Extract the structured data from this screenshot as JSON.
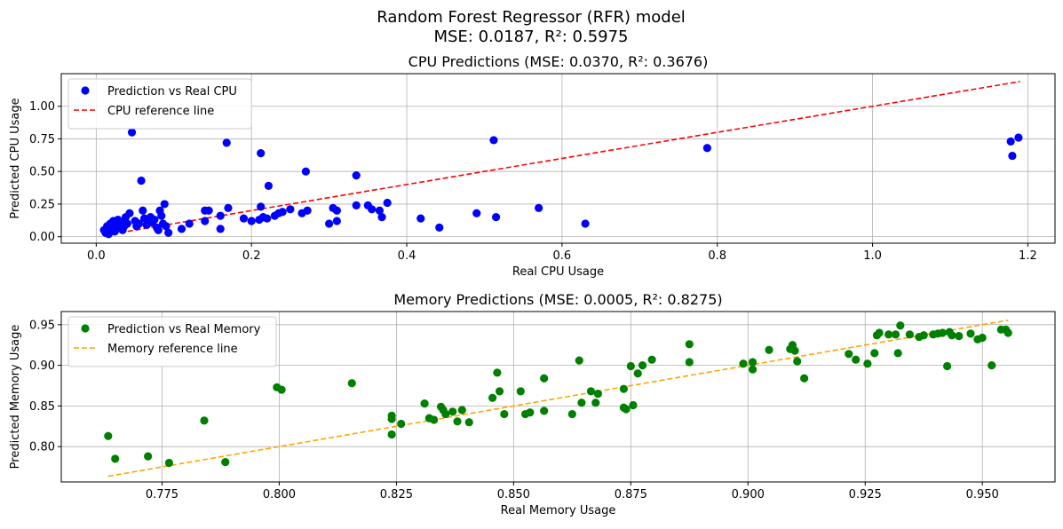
{
  "suptitle_line1": "Random Forest Regressor (RFR) model",
  "suptitle_line2": "MSE: 0.0187, R²: 0.5975",
  "chart_data": [
    {
      "type": "scatter",
      "title": "CPU Predictions (MSE: 0.0370, R²: 0.3676)",
      "xlabel": "Real CPU Usage",
      "ylabel": "Predicted CPU Usage",
      "xlim": [
        -0.045,
        1.235
      ],
      "ylim": [
        -0.05,
        1.25
      ],
      "xticks": [
        0.0,
        0.2,
        0.4,
        0.6,
        0.8,
        1.0,
        1.2
      ],
      "xtick_labels": [
        "0.0",
        "0.2",
        "0.4",
        "0.6",
        "0.8",
        "1.0",
        "1.2"
      ],
      "yticks": [
        0.0,
        0.25,
        0.5,
        0.75,
        1.0
      ],
      "ytick_labels": [
        "0.00",
        "0.25",
        "0.50",
        "0.75",
        "1.00"
      ],
      "grid": true,
      "legend_position": "top-left",
      "series": [
        {
          "name": "Prediction vs Real CPU",
          "kind": "scatter",
          "color": "#0000ff",
          "points": [
            [
              0.01,
              0.05
            ],
            [
              0.012,
              0.03
            ],
            [
              0.014,
              0.08
            ],
            [
              0.016,
              0.02
            ],
            [
              0.018,
              0.1
            ],
            [
              0.02,
              0.06
            ],
            [
              0.022,
              0.12
            ],
            [
              0.024,
              0.04
            ],
            [
              0.026,
              0.09
            ],
            [
              0.028,
              0.13
            ],
            [
              0.03,
              0.07
            ],
            [
              0.032,
              0.11
            ],
            [
              0.034,
              0.05
            ],
            [
              0.036,
              0.08
            ],
            [
              0.038,
              0.15
            ],
            [
              0.04,
              0.1
            ],
            [
              0.043,
              0.18
            ],
            [
              0.046,
              0.8
            ],
            [
              0.05,
              0.12
            ],
            [
              0.052,
              0.08
            ],
            [
              0.055,
              0.1
            ],
            [
              0.058,
              0.43
            ],
            [
              0.06,
              0.2
            ],
            [
              0.062,
              0.14
            ],
            [
              0.065,
              0.09
            ],
            [
              0.068,
              0.12
            ],
            [
              0.07,
              0.15
            ],
            [
              0.072,
              0.11
            ],
            [
              0.075,
              0.13
            ],
            [
              0.078,
              0.07
            ],
            [
              0.08,
              0.05
            ],
            [
              0.082,
              0.2
            ],
            [
              0.084,
              0.16
            ],
            [
              0.086,
              0.1
            ],
            [
              0.088,
              0.25
            ],
            [
              0.09,
              0.08
            ],
            [
              0.093,
              0.03
            ],
            [
              0.11,
              0.06
            ],
            [
              0.12,
              0.1
            ],
            [
              0.14,
              0.12
            ],
            [
              0.14,
              0.2
            ],
            [
              0.145,
              0.2
            ],
            [
              0.16,
              0.06
            ],
            [
              0.16,
              0.16
            ],
            [
              0.168,
              0.72
            ],
            [
              0.17,
              0.22
            ],
            [
              0.19,
              0.14
            ],
            [
              0.2,
              0.12
            ],
            [
              0.21,
              0.13
            ],
            [
              0.212,
              0.23
            ],
            [
              0.212,
              0.64
            ],
            [
              0.215,
              0.15
            ],
            [
              0.22,
              0.14
            ],
            [
              0.222,
              0.39
            ],
            [
              0.23,
              0.16
            ],
            [
              0.235,
              0.18
            ],
            [
              0.24,
              0.19
            ],
            [
              0.25,
              0.21
            ],
            [
              0.265,
              0.18
            ],
            [
              0.27,
              0.5
            ],
            [
              0.272,
              0.2
            ],
            [
              0.3,
              0.1
            ],
            [
              0.305,
              0.22
            ],
            [
              0.31,
              0.12
            ],
            [
              0.31,
              0.2
            ],
            [
              0.335,
              0.47
            ],
            [
              0.335,
              0.24
            ],
            [
              0.35,
              0.24
            ],
            [
              0.355,
              0.21
            ],
            [
              0.365,
              0.2
            ],
            [
              0.368,
              0.15
            ],
            [
              0.375,
              0.26
            ],
            [
              0.418,
              0.14
            ],
            [
              0.442,
              0.07
            ],
            [
              0.49,
              0.18
            ],
            [
              0.512,
              0.74
            ],
            [
              0.515,
              0.15
            ],
            [
              0.57,
              0.22
            ],
            [
              0.63,
              0.1
            ],
            [
              0.787,
              0.68
            ],
            [
              1.178,
              0.73
            ],
            [
              1.18,
              0.62
            ],
            [
              1.188,
              0.76
            ]
          ]
        },
        {
          "name": "CPU reference line",
          "kind": "line",
          "style": "dashed",
          "color": "#ff0000",
          "points": [
            [
              0.01,
              0.01
            ],
            [
              1.19,
              1.19
            ]
          ]
        }
      ]
    },
    {
      "type": "scatter",
      "title": "Memory Predictions (MSE: 0.0005, R²: 0.8275)",
      "xlabel": "Real Memory Usage",
      "ylabel": "Predicted Memory Usage",
      "xlim": [
        0.7535,
        0.9655
      ],
      "ylim": [
        0.7565,
        0.9662
      ],
      "xticks": [
        0.775,
        0.8,
        0.825,
        0.85,
        0.875,
        0.9,
        0.925,
        0.95
      ],
      "xtick_labels": [
        "0.775",
        "0.800",
        "0.825",
        "0.850",
        "0.875",
        "0.900",
        "0.925",
        "0.950"
      ],
      "yticks": [
        0.8,
        0.85,
        0.9,
        0.95
      ],
      "ytick_labels": [
        "0.80",
        "0.85",
        "0.90",
        "0.95"
      ],
      "grid": true,
      "legend_position": "top-left",
      "series": [
        {
          "name": "Prediction vs Real Memory",
          "kind": "scatter",
          "color": "#008000",
          "points": [
            [
              0.7635,
              0.813
            ],
            [
              0.765,
              0.785
            ],
            [
              0.772,
              0.788
            ],
            [
              0.7765,
              0.78
            ],
            [
              0.784,
              0.832
            ],
            [
              0.7885,
              0.781
            ],
            [
              0.7995,
              0.873
            ],
            [
              0.8005,
              0.87
            ],
            [
              0.8155,
              0.878
            ],
            [
              0.824,
              0.838
            ],
            [
              0.824,
              0.834
            ],
            [
              0.824,
              0.815
            ],
            [
              0.826,
              0.828
            ],
            [
              0.831,
              0.853
            ],
            [
              0.832,
              0.835
            ],
            [
              0.833,
              0.833
            ],
            [
              0.8345,
              0.849
            ],
            [
              0.835,
              0.845
            ],
            [
              0.8355,
              0.84
            ],
            [
              0.837,
              0.843
            ],
            [
              0.838,
              0.831
            ],
            [
              0.839,
              0.845
            ],
            [
              0.8405,
              0.83
            ],
            [
              0.8455,
              0.86
            ],
            [
              0.8465,
              0.891
            ],
            [
              0.847,
              0.868
            ],
            [
              0.848,
              0.84
            ],
            [
              0.8515,
              0.868
            ],
            [
              0.8525,
              0.84
            ],
            [
              0.8535,
              0.842
            ],
            [
              0.8565,
              0.844
            ],
            [
              0.8565,
              0.884
            ],
            [
              0.8625,
              0.84
            ],
            [
              0.864,
              0.906
            ],
            [
              0.8645,
              0.854
            ],
            [
              0.8665,
              0.868
            ],
            [
              0.8675,
              0.854
            ],
            [
              0.868,
              0.865
            ],
            [
              0.8735,
              0.871
            ],
            [
              0.8735,
              0.848
            ],
            [
              0.874,
              0.846
            ],
            [
              0.875,
              0.899
            ],
            [
              0.8755,
              0.851
            ],
            [
              0.8765,
              0.89
            ],
            [
              0.8775,
              0.9
            ],
            [
              0.8795,
              0.907
            ],
            [
              0.8875,
              0.926
            ],
            [
              0.8875,
              0.904
            ],
            [
              0.899,
              0.902
            ],
            [
              0.901,
              0.895
            ],
            [
              0.901,
              0.904
            ],
            [
              0.9045,
              0.919
            ],
            [
              0.909,
              0.92
            ],
            [
              0.9095,
              0.925
            ],
            [
              0.91,
              0.918
            ],
            [
              0.9105,
              0.905
            ],
            [
              0.912,
              0.884
            ],
            [
              0.9215,
              0.914
            ],
            [
              0.923,
              0.907
            ],
            [
              0.9255,
              0.902
            ],
            [
              0.927,
              0.915
            ],
            [
              0.9275,
              0.937
            ],
            [
              0.928,
              0.94
            ],
            [
              0.93,
              0.938
            ],
            [
              0.9315,
              0.938
            ],
            [
              0.932,
              0.915
            ],
            [
              0.9325,
              0.949
            ],
            [
              0.9345,
              0.938
            ],
            [
              0.9365,
              0.935
            ],
            [
              0.9375,
              0.937
            ],
            [
              0.9395,
              0.938
            ],
            [
              0.9405,
              0.939
            ],
            [
              0.9415,
              0.94
            ],
            [
              0.9425,
              0.899
            ],
            [
              0.943,
              0.941
            ],
            [
              0.9435,
              0.937
            ],
            [
              0.945,
              0.936
            ],
            [
              0.9475,
              0.939
            ],
            [
              0.949,
              0.932
            ],
            [
              0.95,
              0.934
            ],
            [
              0.952,
              0.9
            ],
            [
              0.954,
              0.944
            ],
            [
              0.955,
              0.944
            ],
            [
              0.9555,
              0.94
            ]
          ]
        },
        {
          "name": "Memory reference line",
          "kind": "line",
          "style": "dashed",
          "color": "#ffa500",
          "points": [
            [
              0.7635,
              0.7635
            ],
            [
              0.9555,
              0.9555
            ]
          ]
        }
      ]
    }
  ]
}
